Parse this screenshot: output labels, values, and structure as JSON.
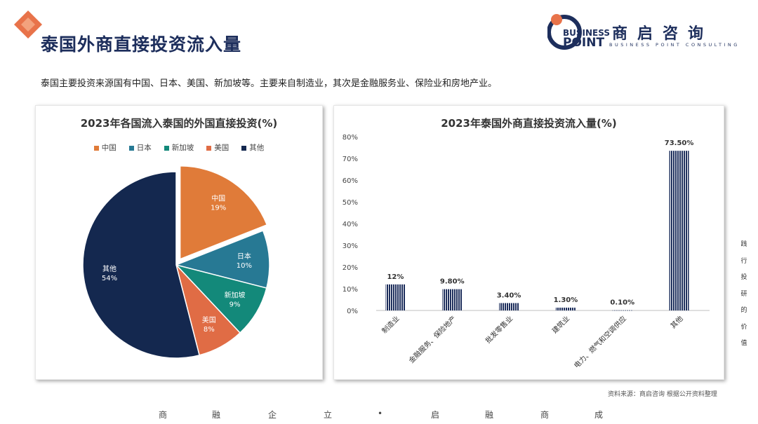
{
  "header": {
    "title": "泰国外商直接投资流入量",
    "brand_en_top": "BUSINESS",
    "brand_en_bottom": "POINT",
    "brand_cn": "商启咨询",
    "brand_tagline": "BUSINESS POINT CONSULTING"
  },
  "subtitle": "泰国主要投资来源国有中国、日本、美国、新加坡等。主要来自制造业，其次是金融服务业、保险业和房地产业。",
  "colors": {
    "orange": "#e07b39",
    "blue": "#277994",
    "teal": "#13897a",
    "coral": "#e06c45",
    "navy": "#14284f"
  },
  "chart_data": [
    {
      "type": "pie",
      "title": "2023年各国流入泰国的外国直接投资(%)",
      "legend_position": "top",
      "slices": [
        {
          "label": "中国",
          "value": 19,
          "display": "19%",
          "color": "#e07b39",
          "exploded": true
        },
        {
          "label": "日本",
          "value": 10,
          "display": "10%",
          "color": "#277994"
        },
        {
          "label": "新加坡",
          "value": 9,
          "display": "9%",
          "color": "#13897a"
        },
        {
          "label": "美国",
          "value": 8,
          "display": "8%",
          "color": "#e06c45"
        },
        {
          "label": "其他",
          "value": 54,
          "display": "54%",
          "color": "#14284f"
        }
      ]
    },
    {
      "type": "bar",
      "title": "2023年泰国外商直接投资流入量(%)",
      "categories": [
        "制造业",
        "金融服务、保险地产",
        "批发零售业",
        "建筑业",
        "电力、燃气和空调供应",
        "其他"
      ],
      "values": [
        12,
        9.8,
        3.4,
        1.3,
        0.1,
        73.5
      ],
      "value_labels": [
        "12%",
        "9.80%",
        "3.40%",
        "1.30%",
        "0.10%",
        "73.50%"
      ],
      "ylim": [
        0,
        80
      ],
      "yticks": [
        "0%",
        "10%",
        "20%",
        "30%",
        "40%",
        "50%",
        "60%",
        "70%",
        "80%"
      ],
      "grid": false,
      "bar_color": "#1d2e5c"
    }
  ],
  "source": "资料来源：商启咨询 根据公开资料整理",
  "side_text": [
    "践",
    "行",
    "投",
    "研",
    "的",
    "价",
    "值"
  ],
  "footer": [
    "商",
    "融",
    "企",
    "立",
    "•",
    "启",
    "融",
    "商",
    "成"
  ]
}
